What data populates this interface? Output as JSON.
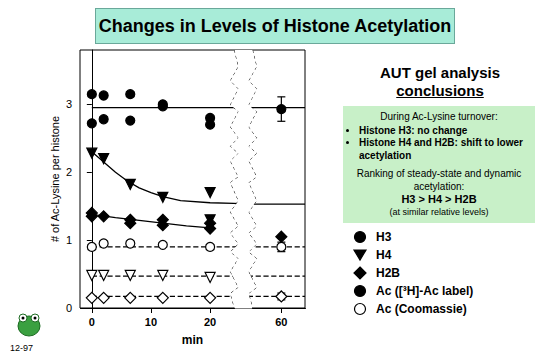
{
  "title": "Changes in Levels of Histone Acetylation",
  "chart_data": {
    "type": "scatter",
    "xlabel": "min",
    "ylabel": "# of Ac-Lysine per histone",
    "xlim": [
      -2,
      64
    ],
    "xticks": [
      0,
      10,
      20,
      60
    ],
    "xbreak": [
      24,
      55
    ],
    "ylim": [
      0,
      3.8
    ],
    "yticks": [
      0,
      1,
      2,
      3
    ],
    "grid": false,
    "series": [
      {
        "type": "line",
        "marker": "none",
        "line_style": "solid",
        "color": "#000000",
        "x": [
          0,
          64
        ],
        "values": [
          2.95,
          2.95
        ]
      },
      {
        "type": "line",
        "marker": "none",
        "line_style": "solid",
        "color": "#000000",
        "x": [
          0,
          2,
          4,
          6,
          8,
          10,
          12,
          15,
          20,
          24,
          55,
          64
        ],
        "values": [
          2.3,
          2.15,
          2.0,
          1.87,
          1.77,
          1.7,
          1.64,
          1.58,
          1.55,
          1.54,
          1.53,
          1.53
        ]
      },
      {
        "type": "line",
        "marker": "none",
        "line_style": "solid",
        "color": "#000000",
        "x": [
          0,
          4,
          8,
          12,
          16,
          20
        ],
        "values": [
          1.38,
          1.33,
          1.29,
          1.25,
          1.21,
          1.18
        ]
      },
      {
        "type": "line",
        "marker": "none",
        "line_style": "dashed",
        "color": "#000000",
        "x": [
          0,
          64
        ],
        "values": [
          0.9,
          0.9
        ]
      },
      {
        "type": "line",
        "marker": "none",
        "line_style": "dashed",
        "color": "#000000",
        "x": [
          0,
          64
        ],
        "values": [
          0.47,
          0.47
        ]
      },
      {
        "type": "line",
        "marker": "none",
        "line_style": "dashed",
        "color": "#000000",
        "x": [
          0,
          64
        ],
        "values": [
          0.17,
          0.17
        ]
      },
      {
        "type": "scatter",
        "marker": "circle",
        "color": "#000000",
        "x": [
          0,
          0,
          2,
          2,
          6.5,
          6.5,
          12,
          12,
          20,
          20,
          60
        ],
        "values": [
          3.15,
          2.72,
          3.13,
          2.78,
          3.15,
          2.76,
          3.0,
          2.97,
          2.8,
          2.7,
          2.93
        ],
        "errors": [
          null,
          null,
          null,
          null,
          null,
          null,
          null,
          null,
          null,
          null,
          0.18
        ]
      },
      {
        "type": "scatter",
        "marker": "triangle_down",
        "color": "#000000",
        "x": [
          0,
          2,
          6.5,
          12,
          20,
          20
        ],
        "values": [
          2.28,
          2.2,
          1.82,
          1.63,
          1.7,
          1.3
        ]
      },
      {
        "type": "scatter",
        "marker": "diamond",
        "color": "#000000",
        "x": [
          0,
          0,
          2,
          6.5,
          6.5,
          12,
          12,
          20,
          20,
          60
        ],
        "values": [
          1.4,
          1.35,
          1.35,
          1.3,
          1.25,
          1.3,
          1.22,
          1.25,
          1.17,
          1.05
        ]
      },
      {
        "type": "scatter",
        "marker": "open_circle",
        "color": "#000000",
        "x": [
          0,
          2,
          6.5,
          12,
          20,
          60
        ],
        "values": [
          0.9,
          0.95,
          0.95,
          0.93,
          0.9,
          0.9
        ],
        "errors": [
          null,
          null,
          null,
          null,
          null,
          0.07
        ]
      },
      {
        "type": "scatter",
        "marker": "open_triangle_down",
        "color": "#000000",
        "x": [
          0,
          2,
          6.5,
          12,
          20
        ],
        "values": [
          0.48,
          0.48,
          0.48,
          0.48,
          0.45
        ]
      },
      {
        "type": "scatter",
        "marker": "open_diamond",
        "color": "#000000",
        "x": [
          0,
          2,
          6.5,
          12,
          20,
          60
        ],
        "values": [
          0.15,
          0.15,
          0.15,
          0.15,
          0.15,
          0.17
        ],
        "errors": [
          null,
          null,
          null,
          null,
          null,
          0.05
        ]
      }
    ]
  },
  "panel": {
    "heading": "AUT gel analysis",
    "heading_underlined": "conclusions",
    "box": {
      "intro": "During Ac-Lysine turnover:",
      "bullets": [
        "Histone H3: no change",
        "Histone H4 and H2B: shift to lower acetylation"
      ],
      "ranking_title": "Ranking of steady-state and dynamic acetylation:",
      "ranking": "H3 > H4 > H2B",
      "ranking_note": "(at similar relative levels)"
    },
    "legend_entries": [
      {
        "label": "H3",
        "marker": "circle"
      },
      {
        "label": "H4",
        "marker": "triangle_down"
      },
      {
        "label": "H2B",
        "marker": "diamond"
      },
      {
        "label": "Ac ([³H]-Ac label)",
        "marker": "circle"
      },
      {
        "label": "Ac (Coomassie)",
        "marker": "open_circle"
      }
    ]
  },
  "footer": "12-97"
}
